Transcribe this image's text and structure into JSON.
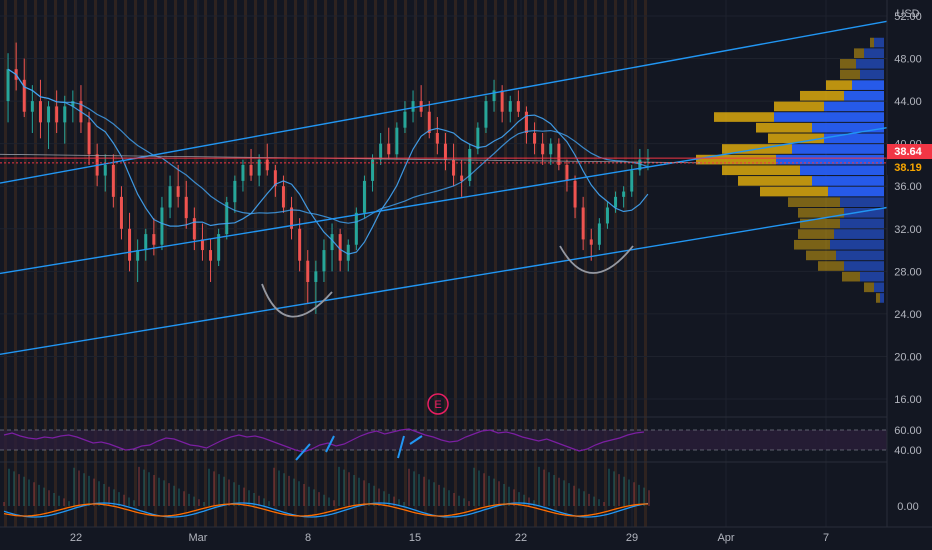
{
  "currency": "USD",
  "colors": {
    "background": "#131722",
    "grid": "#1e222d",
    "bull_candle": "#26a69a",
    "bear_candle": "#ef5350",
    "channel_line": "#2196f3",
    "ma_line": "#42a5f5",
    "pattern_arc": "#9598a1",
    "volume_profile_buy": "#2962ff",
    "volume_profile_sell": "#f0b90b",
    "rsi_line": "#7b1fa2",
    "rsi_band": "#2a1e3a",
    "current_price": "#f23645",
    "prev_close": "#f7a600",
    "earnings_marker": "#e91e63",
    "macd_line": "#2196f3",
    "signal_line": "#ff6d00"
  },
  "price_badges": {
    "last_price": "38.64",
    "prev_price": "38.19"
  },
  "earnings_marker": {
    "label": "E"
  },
  "chart_data": [
    {
      "type": "line",
      "name": "price-pane",
      "y_axis_ticks": [
        "52.00",
        "48.00",
        "44.00",
        "40.00",
        "36.00",
        "32.00",
        "28.00",
        "24.00",
        "20.00",
        "16.00"
      ],
      "ylim": [
        14.5,
        53.5
      ],
      "x_tick_labels": [
        "22",
        "Mar",
        "8",
        "15",
        "22",
        "29",
        "Apr",
        "7"
      ],
      "candles": [
        [
          44,
          48.5,
          42,
          47
        ],
        [
          47,
          49.5,
          45,
          46
        ],
        [
          46,
          48,
          42.5,
          43
        ],
        [
          43,
          45.5,
          41,
          44
        ],
        [
          44,
          46,
          40.5,
          42
        ],
        [
          42,
          44,
          39.5,
          43.5
        ],
        [
          43.5,
          45,
          41,
          42
        ],
        [
          42,
          44.5,
          40,
          43.5
        ],
        [
          43.5,
          45,
          42,
          44
        ],
        [
          44,
          45.5,
          41,
          42
        ],
        [
          42,
          43,
          38,
          39
        ],
        [
          39,
          40,
          36,
          37
        ],
        [
          37,
          39,
          35.5,
          38
        ],
        [
          38,
          39,
          34,
          35
        ],
        [
          35,
          36,
          31,
          32
        ],
        [
          32,
          33.5,
          28,
          29
        ],
        [
          29,
          31,
          27,
          30
        ],
        [
          30,
          32,
          29,
          31.5
        ],
        [
          31.5,
          33,
          29.5,
          30.5
        ],
        [
          30.5,
          35,
          30,
          34
        ],
        [
          34,
          37,
          33,
          36
        ],
        [
          36,
          38,
          34,
          35
        ],
        [
          35,
          36.5,
          32,
          33
        ],
        [
          33,
          34,
          30,
          31
        ],
        [
          31,
          32.5,
          29,
          30
        ],
        [
          30,
          31,
          27,
          29
        ],
        [
          29,
          32,
          28.5,
          31.5
        ],
        [
          31.5,
          35,
          31,
          34.5
        ],
        [
          34.5,
          37,
          33.5,
          36.5
        ],
        [
          36.5,
          38.5,
          35.5,
          38
        ],
        [
          38,
          39.5,
          36.5,
          37
        ],
        [
          37,
          39,
          36,
          38.5
        ],
        [
          38.5,
          40,
          37,
          37.5
        ],
        [
          37.5,
          38,
          35,
          36
        ],
        [
          36,
          37,
          33.5,
          34
        ],
        [
          34,
          35,
          31,
          32
        ],
        [
          32,
          33,
          28,
          29
        ],
        [
          29,
          30,
          25,
          27
        ],
        [
          27,
          29,
          24,
          28
        ],
        [
          28,
          31,
          27,
          30
        ],
        [
          30,
          32.5,
          28,
          31.5
        ],
        [
          31.5,
          32,
          28,
          29
        ],
        [
          29,
          31,
          28,
          30.5
        ],
        [
          30.5,
          34,
          30,
          33.5
        ],
        [
          33.5,
          37,
          33,
          36.5
        ],
        [
          36.5,
          39,
          35.5,
          38.5
        ],
        [
          38.5,
          41,
          38,
          40
        ],
        [
          40,
          41.5,
          38.5,
          39
        ],
        [
          39,
          42,
          38.5,
          41.5
        ],
        [
          41.5,
          44,
          41,
          43
        ],
        [
          43,
          45,
          42,
          44
        ],
        [
          44,
          45.5,
          42.5,
          43
        ],
        [
          43,
          44,
          40.5,
          41
        ],
        [
          41,
          42.5,
          39,
          40
        ],
        [
          40,
          41,
          37.5,
          38.5
        ],
        [
          38.5,
          40,
          36,
          37
        ],
        [
          37,
          38.5,
          35,
          36.5
        ],
        [
          36.5,
          40,
          36,
          39.5
        ],
        [
          39.5,
          42,
          39,
          41.5
        ],
        [
          41.5,
          44.5,
          41,
          44
        ],
        [
          44,
          46,
          43,
          45
        ],
        [
          45,
          45.5,
          42,
          43
        ],
        [
          43,
          44.5,
          42,
          44
        ],
        [
          44,
          45,
          42.5,
          43
        ],
        [
          43,
          43.5,
          40,
          41
        ],
        [
          41,
          42,
          39,
          40
        ],
        [
          40,
          41,
          38,
          39
        ],
        [
          39,
          40.5,
          38,
          40
        ],
        [
          40,
          40.5,
          37.5,
          38
        ],
        [
          38,
          38.5,
          35.5,
          36.5
        ],
        [
          36.5,
          37,
          33,
          34
        ],
        [
          34,
          35,
          30,
          31
        ],
        [
          31,
          32,
          29,
          30.5
        ],
        [
          30.5,
          33,
          30,
          32.5
        ],
        [
          32.5,
          34.5,
          32,
          34
        ],
        [
          34,
          35.5,
          33.5,
          35
        ],
        [
          35,
          36,
          34,
          35.5
        ],
        [
          35.5,
          38,
          35,
          37.5
        ],
        [
          37.5,
          39.5,
          37,
          38.5
        ],
        [
          38.5,
          39.5,
          37.5,
          38.6
        ]
      ]
    },
    {
      "type": "line",
      "name": "rsi-pane",
      "y_axis_ticks": [
        "60.00",
        "40.00"
      ],
      "ylim": [
        30,
        70
      ],
      "band": [
        40,
        60
      ],
      "values": [
        55,
        57,
        54,
        52,
        51,
        53,
        52,
        54,
        55,
        53,
        50,
        47,
        48,
        46,
        43,
        40,
        41,
        44,
        45,
        49,
        52,
        51,
        48,
        45,
        44,
        42,
        46,
        50,
        53,
        55,
        53,
        54,
        52,
        49,
        46,
        43,
        40,
        38,
        41,
        45,
        47,
        44,
        46,
        50,
        54,
        57,
        59,
        56,
        58,
        60,
        61,
        58,
        55,
        53,
        50,
        48,
        49,
        53,
        56,
        59,
        60,
        57,
        58,
        56,
        53,
        51,
        49,
        51,
        48,
        45,
        42,
        39,
        41,
        45,
        48,
        50,
        52,
        55,
        57,
        58
      ]
    },
    {
      "type": "bar",
      "name": "macd-pane",
      "y_axis_ticks": [
        "0.00"
      ],
      "ylim": [
        -2.5,
        2.5
      ]
    },
    {
      "type": "bar",
      "name": "volume-profile",
      "rows": [
        [
          49.5,
          0.5,
          0.2
        ],
        [
          48.5,
          1.0,
          0.5
        ],
        [
          47.5,
          1.4,
          0.8
        ],
        [
          46.5,
          1.2,
          1.0
        ],
        [
          45.5,
          1.6,
          1.3
        ],
        [
          44.5,
          2.0,
          2.2
        ],
        [
          43.5,
          3.0,
          2.5
        ],
        [
          42.5,
          5.5,
          3.0
        ],
        [
          41.5,
          3.6,
          2.8
        ],
        [
          40.5,
          3.0,
          2.8
        ],
        [
          39.5,
          4.6,
          3.5
        ],
        [
          38.5,
          5.4,
          4.0
        ],
        [
          37.5,
          4.2,
          3.9
        ],
        [
          36.5,
          3.6,
          3.7
        ],
        [
          35.5,
          2.8,
          3.4
        ],
        [
          34.5,
          2.2,
          2.6
        ],
        [
          33.5,
          2.0,
          2.3
        ],
        [
          32.5,
          2.2,
          2.0
        ],
        [
          31.5,
          2.5,
          1.8
        ],
        [
          30.5,
          2.7,
          1.8
        ],
        [
          29.5,
          2.4,
          1.5
        ],
        [
          28.5,
          2.0,
          1.3
        ],
        [
          27.5,
          1.2,
          0.9
        ],
        [
          26.5,
          0.5,
          0.5
        ],
        [
          25.5,
          0.2,
          0.2
        ]
      ]
    }
  ]
}
